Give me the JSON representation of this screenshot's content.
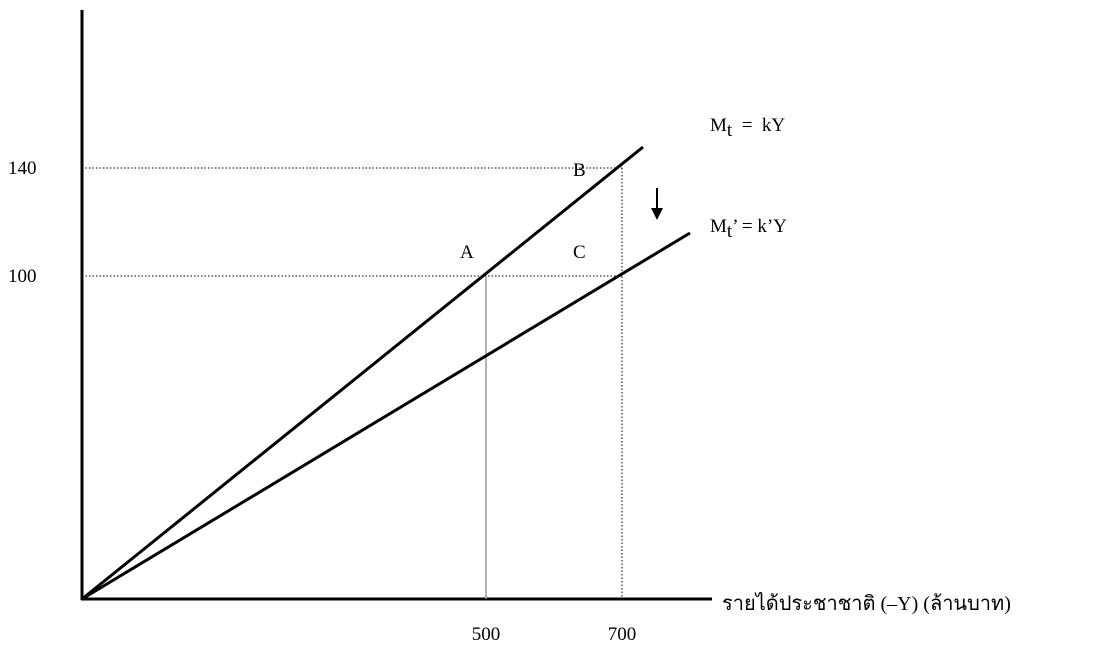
{
  "diagram": {
    "y_labels": [
      "140",
      "100"
    ],
    "x_labels": [
      "500",
      "700"
    ],
    "points": [
      "A",
      "B",
      "C"
    ],
    "curve_1": {
      "base": "M",
      "sub": "t",
      "rest": "  =  kY"
    },
    "curve_2": {
      "base": "M",
      "sub": "t",
      "rest": "’ = k’Y"
    },
    "x_axis_label": "รายได้ประชาชาติ (–Y) (ล้านบาท)"
  }
}
